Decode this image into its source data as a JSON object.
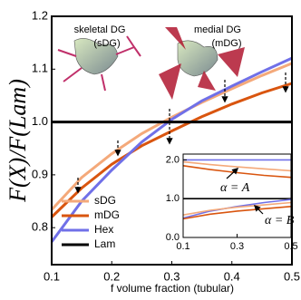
{
  "chart_data": [
    {
      "type": "line",
      "ylabel": "F(X)/F(Lam)",
      "xlabel": "f volume fraction (tubular)",
      "annotations": [
        "skeletal DG",
        "(sDG)",
        "medial DG",
        "(mDG)"
      ],
      "x": [
        0.1,
        0.15,
        0.2,
        0.25,
        0.3,
        0.35,
        0.4,
        0.45,
        0.5
      ],
      "series": [
        {
          "name": "sDG",
          "color": "#f4a97a",
          "values": [
            0.834,
            0.895,
            0.94,
            0.978,
            1.009,
            1.037,
            1.063,
            1.088,
            1.111
          ]
        },
        {
          "name": "mDG",
          "color": "#d9550f",
          "values": [
            0.82,
            0.875,
            0.92,
            0.955,
            0.983,
            1.01,
            1.034,
            1.055,
            1.073
          ]
        },
        {
          "name": "Hex",
          "color": "#7070e8",
          "values": [
            0.773,
            0.85,
            0.909,
            0.962,
            1.005,
            1.04,
            1.068,
            1.095,
            1.121
          ]
        },
        {
          "name": "Lam",
          "color": "#000000",
          "values": [
            1,
            1,
            1,
            1,
            1,
            1,
            1,
            1,
            1
          ]
        }
      ],
      "xlim": [
        0.1,
        0.5
      ],
      "xticks": [
        0.1,
        0.2,
        0.3,
        0.4,
        0.5
      ],
      "ylim": [
        0.73,
        1.2
      ],
      "yticks": [
        0.8,
        0.9,
        {
          "value": 1,
          "label": "1.0"
        },
        1.1,
        1.2
      ],
      "legend": "lower left"
    },
    {
      "type": "line",
      "annotations": [
        "α = A",
        "α = B"
      ],
      "x": [
        0.1,
        0.2,
        0.3,
        0.4,
        0.5
      ],
      "series": [
        {
          "color": "#7070e8",
          "values": [
            2,
            2,
            2,
            2,
            2
          ]
        },
        {
          "color": "#f4a97a",
          "values": [
            1.95,
            1.88,
            1.82,
            1.77,
            1.72
          ]
        },
        {
          "color": "#d9550f",
          "values": [
            1.85,
            1.75,
            1.67,
            1.6,
            1.55
          ]
        },
        {
          "color": "#000000",
          "values": [
            1,
            1,
            1,
            1,
            1
          ]
        },
        {
          "color": "#7070e8",
          "values": [
            0.5,
            0.68,
            0.8,
            0.9,
            0.98
          ]
        },
        {
          "color": "#f4a97a",
          "values": [
            0.58,
            0.7,
            0.78,
            0.84,
            0.9
          ]
        },
        {
          "color": "#d9550f",
          "values": [
            0.48,
            0.6,
            0.68,
            0.74,
            0.8
          ]
        }
      ],
      "xlim": [
        0.1,
        0.5
      ],
      "xticks": [
        0.1,
        0.3,
        0.5
      ],
      "ylim": [
        0,
        2.15
      ],
      "yticks": [
        {
          "value": 0,
          "label": "0.0"
        },
        {
          "value": 1,
          "label": "1.0"
        },
        {
          "value": 2,
          "label": "2.0"
        }
      ]
    }
  ]
}
